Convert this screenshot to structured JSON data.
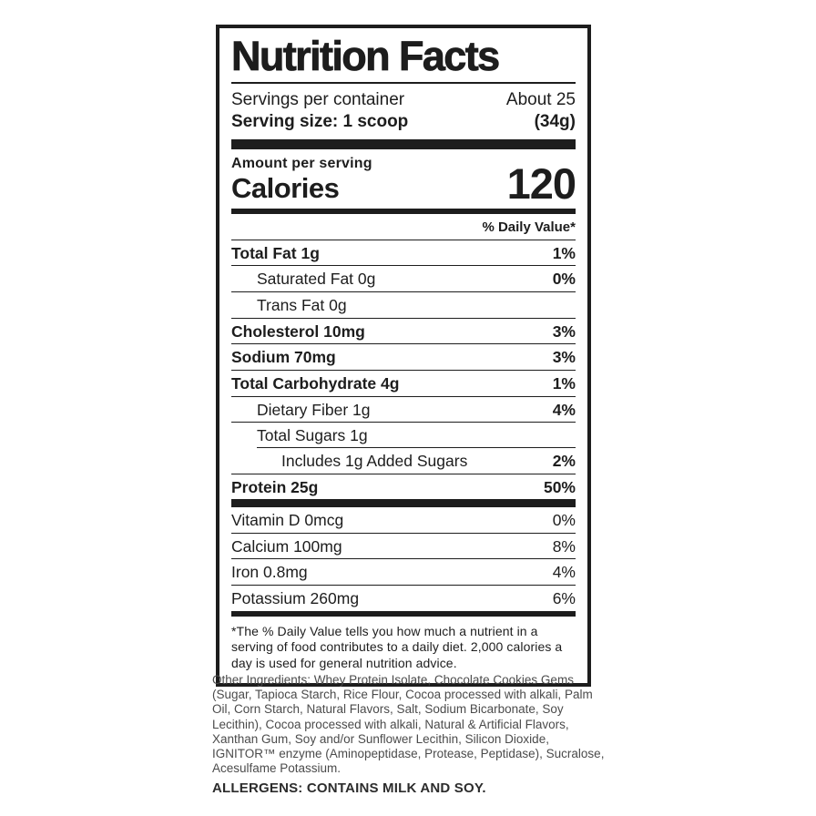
{
  "label": {
    "title": "Nutrition Facts",
    "servings_per_container_label": "Servings per container",
    "servings_per_container_value": "About 25",
    "serving_size_label": "Serving size: 1 scoop",
    "serving_size_value": "(34g)",
    "amount_per_serving_label": "Amount per serving",
    "calories_label": "Calories",
    "calories_value": "120",
    "daily_value_header": "% Daily Value*",
    "nutrients": [
      {
        "name": "Total Fat 1g",
        "dv": "1%",
        "indent": 0,
        "bold": true
      },
      {
        "name": "Saturated Fat 0g",
        "dv": "0%",
        "indent": 1,
        "bold": false
      },
      {
        "name": "Trans Fat 0g",
        "dv": "",
        "indent": 1,
        "bold": false
      },
      {
        "name": "Cholesterol 10mg",
        "dv": "3%",
        "indent": 0,
        "bold": true
      },
      {
        "name": "Sodium 70mg",
        "dv": "3%",
        "indent": 0,
        "bold": true
      },
      {
        "name": "Total Carbohydrate 4g",
        "dv": "1%",
        "indent": 0,
        "bold": true
      },
      {
        "name": "Dietary Fiber 1g",
        "dv": "4%",
        "indent": 1,
        "bold": false
      },
      {
        "name": "Total Sugars 1g",
        "dv": "",
        "indent": 1,
        "bold": false,
        "sep_indent": true
      },
      {
        "name": "Includes 1g Added Sugars",
        "dv": "2%",
        "indent": 2,
        "bold": false
      },
      {
        "name": "Protein 25g",
        "dv": "50%",
        "indent": 0,
        "bold": true
      }
    ],
    "vitamins": [
      {
        "name": "Vitamin D 0mcg",
        "dv": "0%"
      },
      {
        "name": "Calcium 100mg",
        "dv": "8%"
      },
      {
        "name": "Iron 0.8mg",
        "dv": "4%"
      },
      {
        "name": "Potassium 260mg",
        "dv": "6%"
      }
    ],
    "footnote": "*The % Daily Value tells you how much a nutrient in a serving of food contributes to a daily diet. 2,000 calories a day is used for general nutrition advice."
  },
  "ingredients_text": "Other Ingredients: Whey Protein Isolate, Chocolate Cookies Gems (Sugar, Tapioca Starch, Rice Flour, Cocoa processed with alkali, Palm Oil, Corn Starch, Natural Flavors, Salt, Sodium Bicarbonate, Soy Lecithin), Cocoa processed with alkali, Natural & Artificial Flavors, Xanthan Gum, Soy and/or Sunflower Lecithin, Silicon Dioxide, IGNITOR™ enzyme (Aminopeptidase, Protease, Peptidase), Sucralose, Acesulfame Potassium.",
  "allergens_text": "ALLERGENS: CONTAINS MILK AND SOY.",
  "colors": {
    "label_ink": "#1d1d1d",
    "ingredients_ink": "#4b4b4b",
    "allergens_ink": "#2c2c2c",
    "background": "#ffffff"
  }
}
